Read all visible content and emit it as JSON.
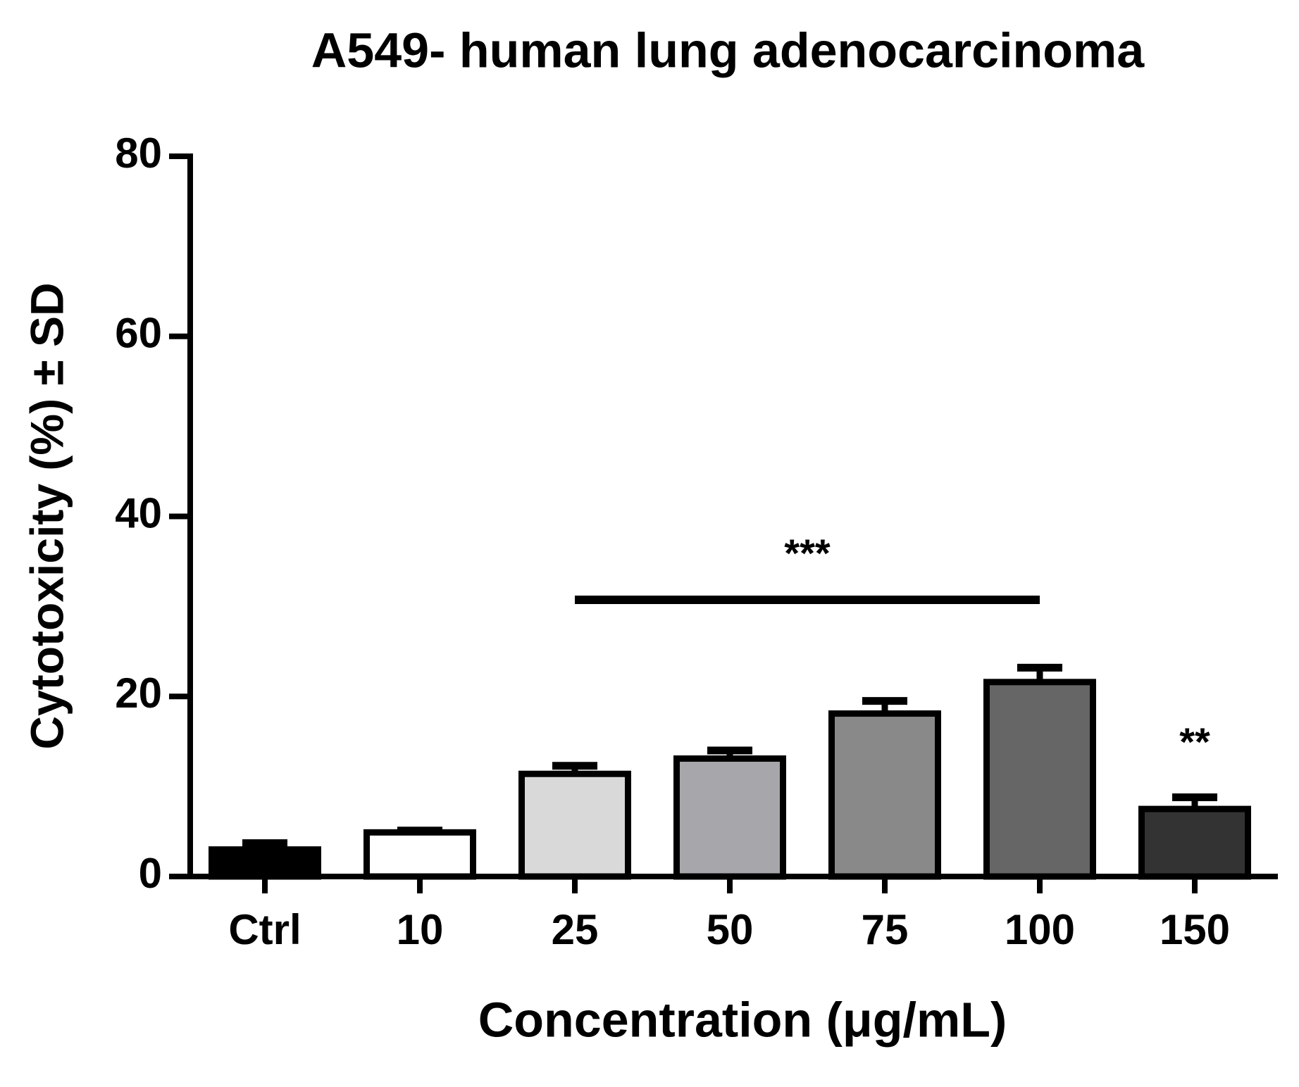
{
  "chart_data": {
    "type": "bar",
    "title": "A549- human lung adenocarcinoma",
    "x_label": "Concentration (μg/mL)",
    "y_label": "Cytotoxicity (%) ± SD",
    "categories": [
      "Ctrl",
      "10",
      "25",
      "50",
      "75",
      "100",
      "150"
    ],
    "values": [
      3.0,
      4.9,
      11.4,
      13.1,
      18.1,
      21.6,
      7.5
    ],
    "errors": [
      0.7,
      0.2,
      0.9,
      0.9,
      1.4,
      1.6,
      1.3
    ],
    "colors": [
      "#000000",
      "#ffffff",
      "#d9d9d9",
      "#a7a6ab",
      "#898989",
      "#666666",
      "#333333"
    ],
    "ylim": [
      0,
      80
    ],
    "yticks": [
      0,
      20,
      40,
      60,
      80
    ],
    "grid": false,
    "annotations": [
      {
        "text": "***",
        "from": "25",
        "to": "100"
      },
      {
        "text": "**",
        "from": "150",
        "to": "150"
      }
    ]
  }
}
